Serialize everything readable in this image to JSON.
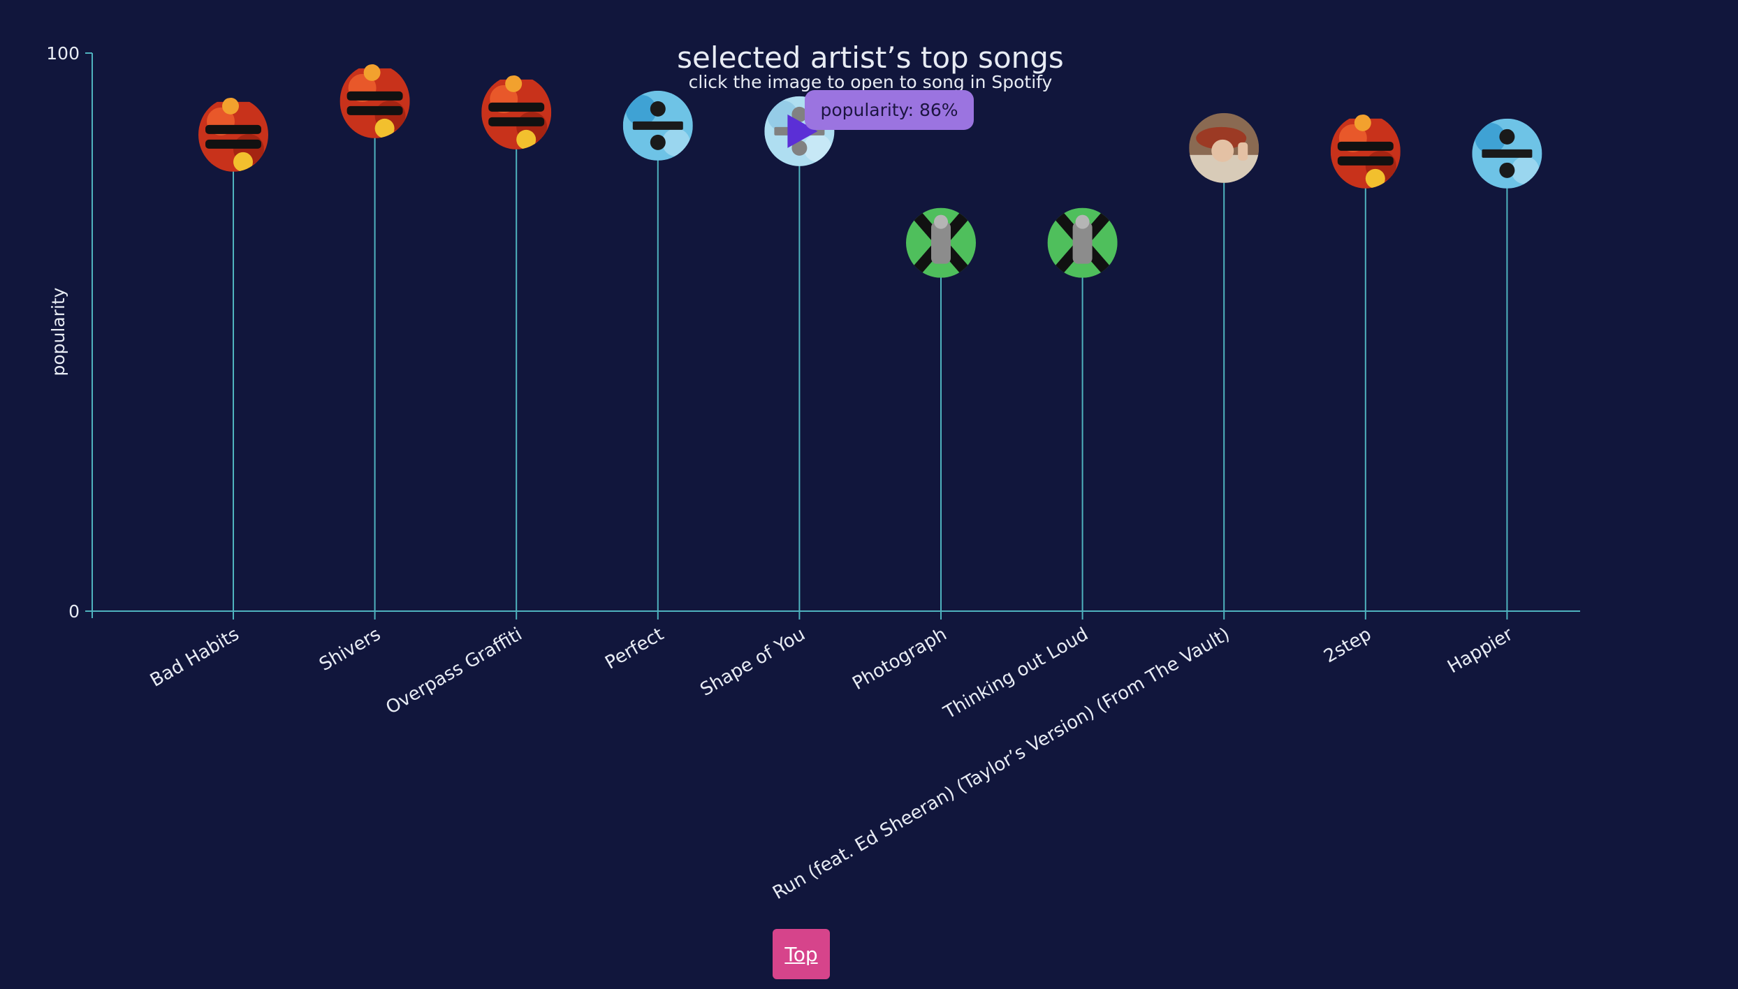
{
  "colors": {
    "background": "#11163c",
    "axis": "#4fb3bf",
    "stem": "#4fb3bf",
    "text": "#e8ecf4",
    "top_button_bg": "#d6448b",
    "top_button_text": "#ffffff",
    "tooltip_bg": "#9b74e0",
    "tooltip_text": "#1c1540",
    "play_icon": "#5b2fd6"
  },
  "title": "selected artist’s top songs",
  "subtitle": "click the image to open to song in Spotify",
  "tooltip": {
    "text": "popularity: 86%"
  },
  "top_button": {
    "label": "Top"
  },
  "chart_data": {
    "type": "lollipop",
    "title": "selected artist’s top songs",
    "subtitle": "click the image to open to song in Spotify",
    "ylabel": "popularity",
    "xlabel": "",
    "ylim": [
      0,
      100
    ],
    "y_ticks": [
      "0",
      "100"
    ],
    "grid": false,
    "categories": [
      "Bad Habits",
      "Shivers",
      "Overpass Graffiti",
      "Perfect",
      "Shape of You",
      "Photograph",
      "Thinking out Loud",
      "Run (feat. Ed Sheeran) (Taylor’s Version) (From The Vault)",
      "2step",
      "Happier"
    ],
    "values": [
      85,
      91,
      89,
      87,
      86,
      66,
      66,
      83,
      82,
      82
    ],
    "album_art": [
      "equals",
      "equals",
      "equals",
      "divide",
      "divide",
      "multiply",
      "multiply",
      "red-tv",
      "equals",
      "divide"
    ],
    "highlighted_index": 4
  }
}
